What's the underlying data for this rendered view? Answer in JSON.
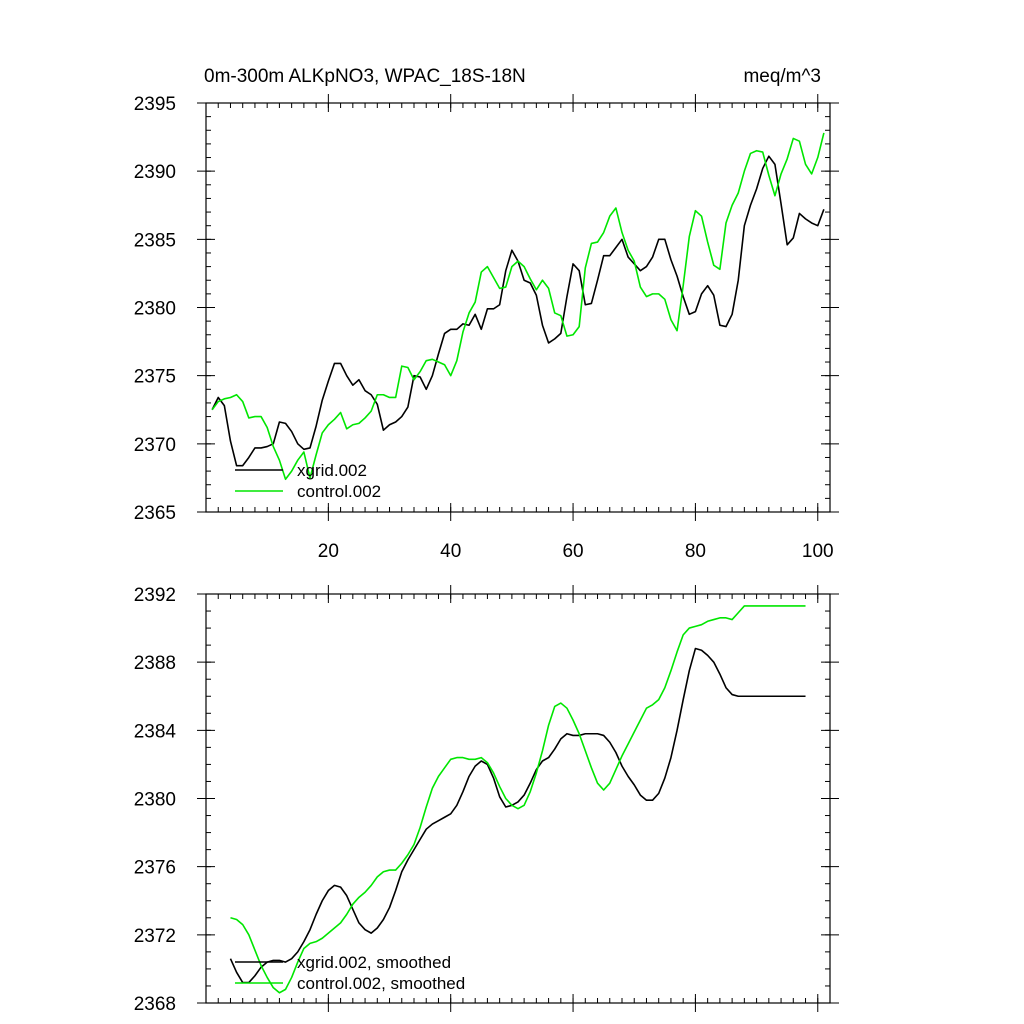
{
  "colors": {
    "xgrid": "#000000",
    "control": "#00e600"
  },
  "chart_data": [
    {
      "type": "line",
      "title": "0m-300m ALKpNO3, WPAC_18S-18N",
      "units": "meq/m^3",
      "xlim": [
        0,
        102
      ],
      "ylim": [
        2365,
        2395
      ],
      "xticks": [
        20,
        40,
        60,
        80,
        100
      ],
      "xtick_labels": [
        "20",
        "40",
        "60",
        "80",
        "100"
      ],
      "yticks": [
        2365,
        2370,
        2375,
        2380,
        2385,
        2390,
        2395
      ],
      "ytick_labels": [
        "2365",
        "2370",
        "2375",
        "2380",
        "2385",
        "2390",
        "2395"
      ],
      "x_minor_step": 2,
      "y_minor_step": 1,
      "legend_position": "bottom-left",
      "series": [
        {
          "name": "xgrid.002",
          "color_key": "xgrid",
          "x": [
            1,
            2,
            3,
            4,
            5,
            6,
            7,
            8,
            9,
            10,
            11,
            12,
            13,
            14,
            15,
            16,
            17,
            18,
            19,
            20,
            21,
            22,
            23,
            24,
            25,
            26,
            27,
            28,
            29,
            30,
            31,
            32,
            33,
            34,
            35,
            36,
            37,
            38,
            39,
            40,
            41,
            42,
            43,
            44,
            45,
            46,
            47,
            48,
            49,
            50,
            51,
            52,
            53,
            54,
            55,
            56,
            57,
            58,
            59,
            60,
            61,
            62,
            63,
            64,
            65,
            66,
            67,
            68,
            69,
            70,
            71,
            72,
            73,
            74,
            75,
            76,
            77,
            78,
            79,
            80,
            81,
            82,
            83,
            84,
            85,
            86,
            87,
            88,
            89,
            90,
            91,
            92,
            93,
            94,
            95,
            96,
            97,
            98,
            99,
            100,
            101
          ],
          "y": [
            2372.5,
            2373.4,
            2372.8,
            2370.2,
            2368.4,
            2368.4,
            2369.0,
            2369.7,
            2369.7,
            2369.8,
            2370.0,
            2371.6,
            2371.5,
            2370.9,
            2370.0,
            2369.6,
            2369.7,
            2371.3,
            2373.2,
            2374.6,
            2375.9,
            2375.9,
            2375.0,
            2374.3,
            2374.7,
            2373.9,
            2373.6,
            2372.9,
            2371.0,
            2371.4,
            2371.6,
            2372.0,
            2372.7,
            2375.0,
            2374.9,
            2374.0,
            2375.0,
            2376.6,
            2378.1,
            2378.4,
            2378.4,
            2378.8,
            2378.7,
            2379.5,
            2378.4,
            2379.9,
            2379.9,
            2380.2,
            2382.7,
            2384.2,
            2383.4,
            2382.0,
            2381.8,
            2380.9,
            2378.7,
            2377.4,
            2377.7,
            2378.1,
            2380.8,
            2383.2,
            2382.7,
            2380.2,
            2380.3,
            2382.0,
            2383.8,
            2383.8,
            2384.4,
            2385.0,
            2383.7,
            2383.2,
            2382.7,
            2383.0,
            2383.7,
            2385.0,
            2385.0,
            2383.5,
            2382.3,
            2380.8,
            2379.5,
            2379.7,
            2381.0,
            2381.6,
            2380.9,
            2378.7,
            2378.6,
            2379.5,
            2382.0,
            2386.0,
            2387.5,
            2388.7,
            2390.2,
            2391.1,
            2390.5,
            2387.6,
            2384.6,
            2385.1,
            2386.9,
            2386.5,
            2386.2,
            2386.0,
            2387.2
          ]
        },
        {
          "name": "control.002",
          "color_key": "control",
          "x": [
            1,
            2,
            3,
            4,
            5,
            6,
            7,
            8,
            9,
            10,
            11,
            12,
            13,
            14,
            15,
            16,
            17,
            18,
            19,
            20,
            21,
            22,
            23,
            24,
            25,
            26,
            27,
            28,
            29,
            30,
            31,
            32,
            33,
            34,
            35,
            36,
            37,
            38,
            39,
            40,
            41,
            42,
            43,
            44,
            45,
            46,
            47,
            48,
            49,
            50,
            51,
            52,
            53,
            54,
            55,
            56,
            57,
            58,
            59,
            60,
            61,
            62,
            63,
            64,
            65,
            66,
            67,
            68,
            69,
            70,
            71,
            72,
            73,
            74,
            75,
            76,
            77,
            78,
            79,
            80,
            81,
            82,
            83,
            84,
            85,
            86,
            87,
            88,
            89,
            90,
            91,
            92,
            93,
            94,
            95,
            96,
            97,
            98,
            99,
            100,
            101
          ],
          "y": [
            2372.5,
            2373.1,
            2373.3,
            2373.4,
            2373.6,
            2373.1,
            2371.9,
            2372.0,
            2372.0,
            2371.2,
            2369.8,
            2368.8,
            2367.4,
            2368.0,
            2368.8,
            2369.4,
            2367.5,
            2369.2,
            2370.8,
            2371.4,
            2371.8,
            2372.3,
            2371.1,
            2371.4,
            2371.5,
            2371.9,
            2372.4,
            2373.6,
            2373.6,
            2373.4,
            2373.4,
            2375.7,
            2375.6,
            2374.7,
            2375.3,
            2376.1,
            2376.2,
            2376.0,
            2375.8,
            2375.0,
            2376.1,
            2378.2,
            2379.6,
            2380.4,
            2382.6,
            2383.0,
            2382.2,
            2381.4,
            2381.5,
            2383.0,
            2383.4,
            2383.0,
            2382.1,
            2381.3,
            2382.0,
            2381.4,
            2379.6,
            2379.4,
            2377.9,
            2378.0,
            2378.6,
            2382.9,
            2384.7,
            2384.8,
            2385.5,
            2386.7,
            2387.3,
            2385.5,
            2384.2,
            2383.4,
            2381.5,
            2380.8,
            2381.0,
            2381.0,
            2380.6,
            2379.1,
            2378.3,
            2381.6,
            2385.2,
            2387.1,
            2386.7,
            2384.8,
            2383.1,
            2382.8,
            2386.2,
            2387.5,
            2388.4,
            2390.0,
            2391.3,
            2391.5,
            2391.4,
            2389.7,
            2388.2,
            2389.8,
            2390.9,
            2392.4,
            2392.2,
            2390.5,
            2389.8,
            2391.0,
            2392.8
          ]
        }
      ],
      "legend": [
        {
          "label": "xgrid.002",
          "color_key": "xgrid"
        },
        {
          "label": "control.002",
          "color_key": "control"
        }
      ]
    },
    {
      "type": "line",
      "title": "",
      "xlim": [
        0,
        102
      ],
      "ylim": [
        2368,
        2392
      ],
      "xticks": [
        20,
        40,
        60,
        80,
        100
      ],
      "xtick_labels": [],
      "yticks": [
        2368,
        2372,
        2376,
        2380,
        2384,
        2388,
        2392
      ],
      "ytick_labels": [
        "2368",
        "2372",
        "2376",
        "2380",
        "2384",
        "2388",
        "2392"
      ],
      "x_minor_step": 2,
      "y_minor_step": 1,
      "legend_position": "bottom-left",
      "series": [
        {
          "name": "xgrid.002, smoothed",
          "color_key": "xgrid",
          "x": [
            4,
            5,
            6,
            7,
            8,
            9,
            10,
            11,
            12,
            13,
            14,
            15,
            16,
            17,
            18,
            19,
            20,
            21,
            22,
            23,
            24,
            25,
            26,
            27,
            28,
            29,
            30,
            31,
            32,
            33,
            34,
            35,
            36,
            37,
            38,
            39,
            40,
            41,
            42,
            43,
            44,
            45,
            46,
            47,
            48,
            49,
            50,
            51,
            52,
            53,
            54,
            55,
            56,
            57,
            58,
            59,
            60,
            61,
            62,
            63,
            64,
            65,
            66,
            67,
            68,
            69,
            70,
            71,
            72,
            73,
            74,
            75,
            76,
            77,
            78,
            79,
            80,
            81,
            82,
            83,
            84,
            85,
            86,
            87,
            88,
            89,
            90,
            91,
            92,
            93,
            94,
            95,
            96,
            97,
            98
          ],
          "y": [
            2370.6,
            2369.8,
            2369.2,
            2369.2,
            2369.6,
            2370.1,
            2370.4,
            2370.5,
            2370.5,
            2370.4,
            2370.6,
            2371.0,
            2371.6,
            2372.3,
            2373.2,
            2374.0,
            2374.6,
            2374.9,
            2374.8,
            2374.3,
            2373.5,
            2372.7,
            2372.3,
            2372.1,
            2372.4,
            2372.9,
            2373.6,
            2374.6,
            2375.7,
            2376.4,
            2377.0,
            2377.6,
            2378.2,
            2378.5,
            2378.7,
            2378.9,
            2379.1,
            2379.6,
            2380.4,
            2381.3,
            2381.9,
            2382.2,
            2382.0,
            2381.2,
            2380.1,
            2379.5,
            2379.6,
            2379.8,
            2380.2,
            2380.9,
            2381.7,
            2382.2,
            2382.4,
            2382.9,
            2383.5,
            2383.8,
            2383.7,
            2383.7,
            2383.8,
            2383.8,
            2383.8,
            2383.7,
            2383.3,
            2382.7,
            2381.9,
            2381.3,
            2380.8,
            2380.2,
            2379.9,
            2379.9,
            2380.3,
            2381.2,
            2382.4,
            2384.0,
            2385.8,
            2387.5,
            2388.8,
            2388.7,
            2388.4,
            2388.0,
            2387.3,
            2386.5,
            2386.1,
            2386.0,
            2386.0,
            2386.0,
            2386.0,
            2386.0,
            2386.0,
            2386.0,
            2386.0,
            2386.0,
            2386.0,
            2386.0,
            2386.0
          ]
        },
        {
          "name": "control.002, smoothed",
          "color_key": "control",
          "x": [
            4,
            5,
            6,
            7,
            8,
            9,
            10,
            11,
            12,
            13,
            14,
            15,
            16,
            17,
            18,
            19,
            20,
            21,
            22,
            23,
            24,
            25,
            26,
            27,
            28,
            29,
            30,
            31,
            32,
            33,
            34,
            35,
            36,
            37,
            38,
            39,
            40,
            41,
            42,
            43,
            44,
            45,
            46,
            47,
            48,
            49,
            50,
            51,
            52,
            53,
            54,
            55,
            56,
            57,
            58,
            59,
            60,
            61,
            62,
            63,
            64,
            65,
            66,
            67,
            68,
            69,
            70,
            71,
            72,
            73,
            74,
            75,
            76,
            77,
            78,
            79,
            80,
            81,
            82,
            83,
            84,
            85,
            86,
            87,
            88,
            89,
            90,
            91,
            92,
            93,
            94,
            95,
            96,
            97,
            98
          ],
          "y": [
            2373.0,
            2372.9,
            2372.6,
            2372.0,
            2371.1,
            2370.2,
            2369.5,
            2368.9,
            2368.6,
            2368.8,
            2369.5,
            2370.4,
            2371.2,
            2371.5,
            2371.6,
            2371.8,
            2372.1,
            2372.4,
            2372.7,
            2373.2,
            2373.8,
            2374.2,
            2374.5,
            2374.9,
            2375.4,
            2375.7,
            2375.8,
            2375.8,
            2376.2,
            2376.7,
            2377.3,
            2378.3,
            2379.5,
            2380.6,
            2381.3,
            2381.8,
            2382.3,
            2382.4,
            2382.4,
            2382.3,
            2382.3,
            2382.4,
            2382.1,
            2381.5,
            2380.7,
            2380.0,
            2379.6,
            2379.4,
            2379.6,
            2380.4,
            2381.5,
            2382.8,
            2384.3,
            2385.4,
            2385.6,
            2385.3,
            2384.6,
            2383.8,
            2382.8,
            2381.8,
            2380.9,
            2380.5,
            2380.9,
            2381.7,
            2382.5,
            2383.2,
            2383.9,
            2384.6,
            2385.3,
            2385.5,
            2385.8,
            2386.5,
            2387.5,
            2388.6,
            2389.6,
            2390.0,
            2390.1,
            2390.2,
            2390.4,
            2390.5,
            2390.6,
            2390.6,
            2390.5,
            2390.9,
            2391.3,
            2391.3,
            2391.3,
            2391.3,
            2391.3,
            2391.3,
            2391.3,
            2391.3,
            2391.3,
            2391.3,
            2391.3
          ]
        }
      ],
      "legend": [
        {
          "label": "xgrid.002, smoothed",
          "color_key": "xgrid"
        },
        {
          "label": "control.002, smoothed",
          "color_key": "control"
        }
      ]
    }
  ]
}
